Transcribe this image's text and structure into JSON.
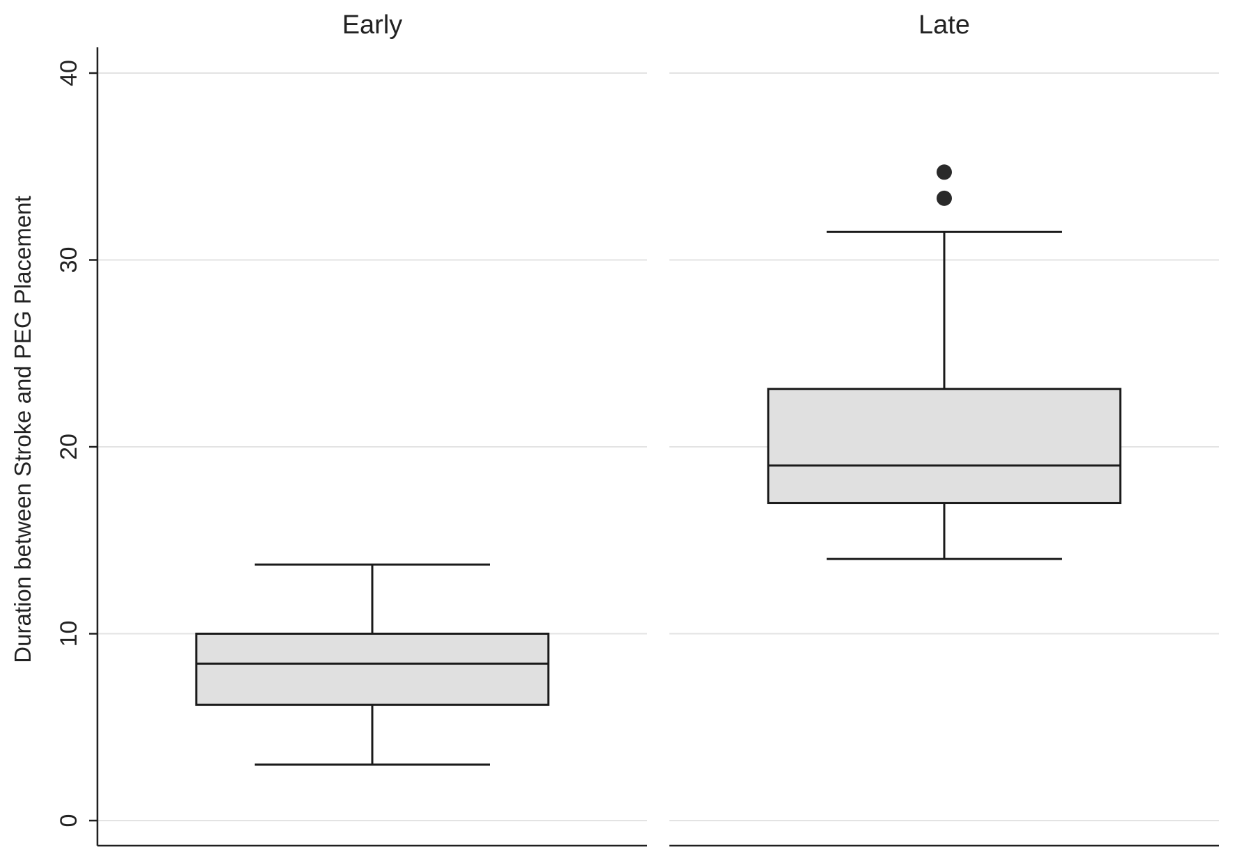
{
  "chart_data": {
    "type": "box",
    "ylabel": "Duration between Stroke and PEG Placement",
    "ylim": [
      0,
      40
    ],
    "yticks": [
      0,
      10,
      20,
      30,
      40
    ],
    "grid": true,
    "box_fill": "#e0e0e0",
    "outline_color": "#1a1a1a",
    "panels": [
      {
        "title": "Early",
        "whisker_low": 3,
        "q1": 6.2,
        "median": 8.4,
        "q3": 10,
        "whisker_high": 13.7,
        "outliers": []
      },
      {
        "title": "Late",
        "whisker_low": 14,
        "q1": 17,
        "median": 19,
        "q3": 23.1,
        "whisker_high": 31.5,
        "outliers": [
          33.3,
          34.7
        ]
      }
    ]
  }
}
